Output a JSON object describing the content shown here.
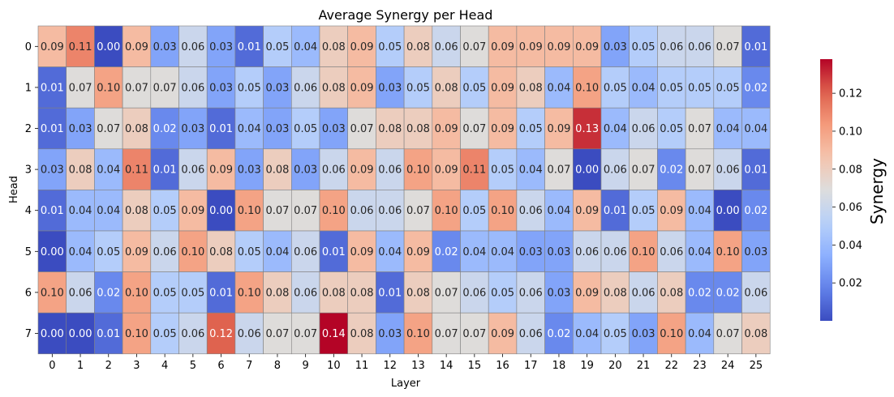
{
  "chart_data": {
    "type": "heatmap",
    "title": "Average Synergy per Head",
    "xlabel": "Layer",
    "ylabel": "Head",
    "x_categories": [
      "0",
      "1",
      "2",
      "3",
      "4",
      "5",
      "6",
      "7",
      "8",
      "9",
      "10",
      "11",
      "12",
      "13",
      "14",
      "15",
      "16",
      "17",
      "18",
      "19",
      "20",
      "21",
      "22",
      "23",
      "24",
      "25"
    ],
    "y_categories": [
      "0",
      "1",
      "2",
      "3",
      "4",
      "5",
      "6",
      "7"
    ],
    "values": [
      [
        0.09,
        0.11,
        0.0,
        0.09,
        0.03,
        0.06,
        0.03,
        0.01,
        0.05,
        0.04,
        0.08,
        0.09,
        0.05,
        0.08,
        0.06,
        0.07,
        0.09,
        0.09,
        0.09,
        0.09,
        0.03,
        0.05,
        0.06,
        0.06,
        0.07,
        0.01
      ],
      [
        0.01,
        0.07,
        0.1,
        0.07,
        0.07,
        0.06,
        0.03,
        0.05,
        0.03,
        0.06,
        0.08,
        0.09,
        0.03,
        0.05,
        0.08,
        0.05,
        0.09,
        0.08,
        0.04,
        0.1,
        0.05,
        0.04,
        0.05,
        0.05,
        0.05,
        0.02
      ],
      [
        0.01,
        0.03,
        0.07,
        0.08,
        0.02,
        0.03,
        0.01,
        0.04,
        0.03,
        0.05,
        0.03,
        0.07,
        0.08,
        0.08,
        0.09,
        0.07,
        0.09,
        0.05,
        0.09,
        0.13,
        0.04,
        0.06,
        0.05,
        0.07,
        0.04,
        0.04
      ],
      [
        0.03,
        0.08,
        0.04,
        0.11,
        0.01,
        0.06,
        0.09,
        0.03,
        0.08,
        0.03,
        0.06,
        0.09,
        0.06,
        0.1,
        0.09,
        0.11,
        0.05,
        0.04,
        0.07,
        0.0,
        0.06,
        0.07,
        0.02,
        0.07,
        0.06,
        0.01
      ],
      [
        0.01,
        0.04,
        0.04,
        0.08,
        0.05,
        0.09,
        0.0,
        0.1,
        0.07,
        0.07,
        0.1,
        0.06,
        0.06,
        0.07,
        0.1,
        0.05,
        0.1,
        0.06,
        0.04,
        0.09,
        0.01,
        0.05,
        0.09,
        0.04,
        0.0,
        0.02
      ],
      [
        0.0,
        0.04,
        0.05,
        0.09,
        0.06,
        0.1,
        0.08,
        0.05,
        0.04,
        0.06,
        0.01,
        0.09,
        0.04,
        0.09,
        0.02,
        0.04,
        0.04,
        0.03,
        0.03,
        0.06,
        0.06,
        0.1,
        0.06,
        0.04,
        0.1,
        0.03
      ],
      [
        0.1,
        0.06,
        0.02,
        0.1,
        0.05,
        0.05,
        0.01,
        0.1,
        0.08,
        0.06,
        0.08,
        0.08,
        0.01,
        0.08,
        0.07,
        0.06,
        0.05,
        0.06,
        0.03,
        0.09,
        0.08,
        0.06,
        0.08,
        0.02,
        0.02,
        0.06
      ],
      [
        0.0,
        0.0,
        0.01,
        0.1,
        0.05,
        0.06,
        0.12,
        0.06,
        0.07,
        0.07,
        0.14,
        0.08,
        0.03,
        0.1,
        0.07,
        0.07,
        0.09,
        0.06,
        0.02,
        0.04,
        0.05,
        0.03,
        0.1,
        0.04,
        0.07,
        0.08
      ]
    ],
    "colormap": "coolwarm",
    "vmin": 0.0,
    "vmax": 0.138,
    "colorbar": {
      "label": "Synergy",
      "ticks": [
        0.02,
        0.04,
        0.06,
        0.08,
        0.1,
        0.12
      ],
      "tick_labels": [
        "0.02",
        "0.04",
        "0.06",
        "0.08",
        "0.10",
        "0.12"
      ]
    },
    "annotations": true,
    "annotation_format": "2 decimals",
    "cell_border_color": "#808080",
    "grid": false
  }
}
